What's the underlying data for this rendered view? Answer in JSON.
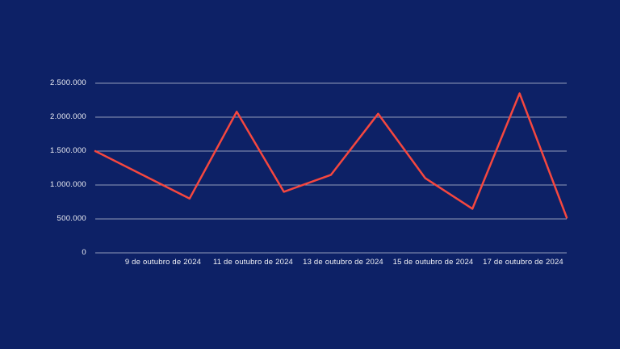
{
  "page": {
    "background_color": "#0d2166"
  },
  "chart_data": {
    "type": "line",
    "title": "",
    "x_tick_labels": [
      "9 de outubro de 2024",
      "11 de outubro de 2024",
      "13 de outubro de 2024",
      "15 de outubro de 2024",
      "17 de outubro de 2024"
    ],
    "y_tick_labels": [
      "0",
      "500.000",
      "1.000.000",
      "1.500.000",
      "2.000.000",
      "2.500.000"
    ],
    "y_tick_values": [
      0,
      500000,
      1000000,
      1500000,
      2000000,
      2500000
    ],
    "ylim": [
      0,
      2500000
    ],
    "num_points": 11,
    "values": [
      1500000,
      1150000,
      800000,
      2080000,
      900000,
      1150000,
      2050000,
      1100000,
      650000,
      2350000,
      520000
    ],
    "line_color": "#f5473f",
    "grid_color": "rgba(255,255,255,0.55)",
    "text_color": "#f2f3f7",
    "grid": true,
    "legend": false
  }
}
